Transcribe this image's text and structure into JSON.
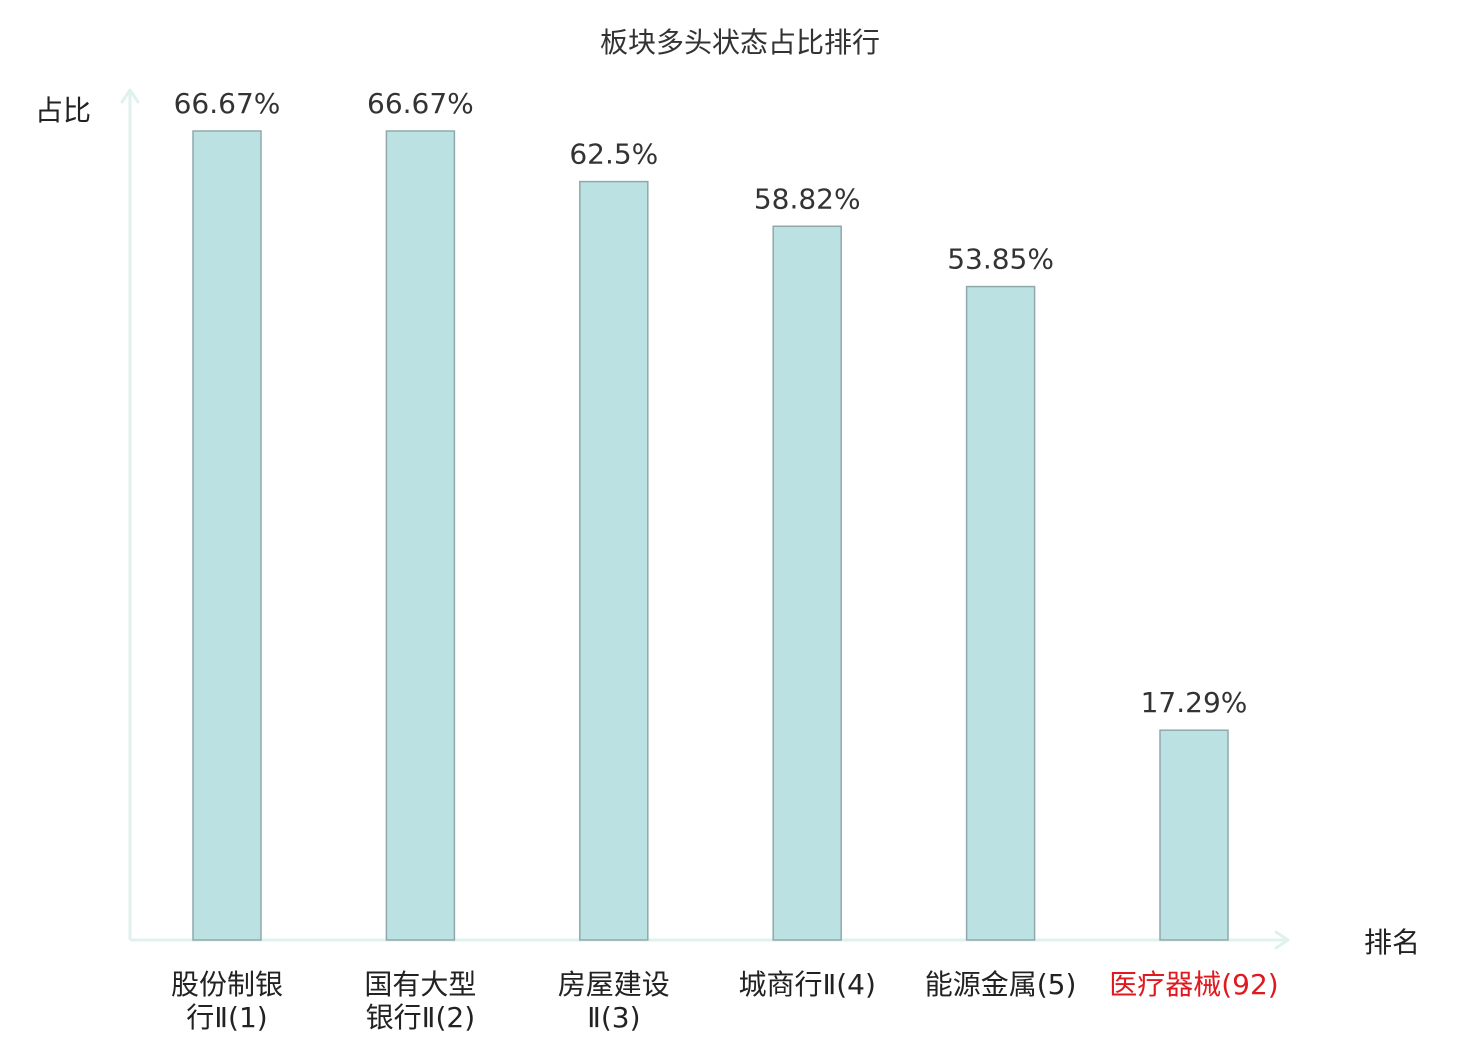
{
  "chart_data": {
    "type": "bar",
    "title": "板块多头状态占比排行",
    "ylabel": "占比",
    "xlabel": "排名",
    "categories": [
      {
        "lines": [
          "股份制银",
          "行Ⅱ(1)"
        ],
        "highlight": false
      },
      {
        "lines": [
          "国有大型",
          "银行Ⅱ(2)"
        ],
        "highlight": false
      },
      {
        "lines": [
          "房屋建设",
          "Ⅱ(3)"
        ],
        "highlight": false
      },
      {
        "lines": [
          "城商行Ⅱ(4)"
        ],
        "highlight": false
      },
      {
        "lines": [
          "能源金属(5)"
        ],
        "highlight": false
      },
      {
        "lines": [
          "医疗器械(92)"
        ],
        "highlight": true
      }
    ],
    "values": [
      66.67,
      66.67,
      62.5,
      58.82,
      53.85,
      17.29
    ],
    "value_labels": [
      "66.67%",
      "66.67%",
      "62.5%",
      "58.82%",
      "53.85%",
      "17.29%"
    ],
    "ylim": [
      0,
      70
    ],
    "grid": false,
    "colors": {
      "bar_fill": "#bce1e3",
      "bar_stroke": "#8fa9ab",
      "axis": "#dff2ee",
      "text": "#333333",
      "highlight_text": "#e0191f"
    }
  }
}
